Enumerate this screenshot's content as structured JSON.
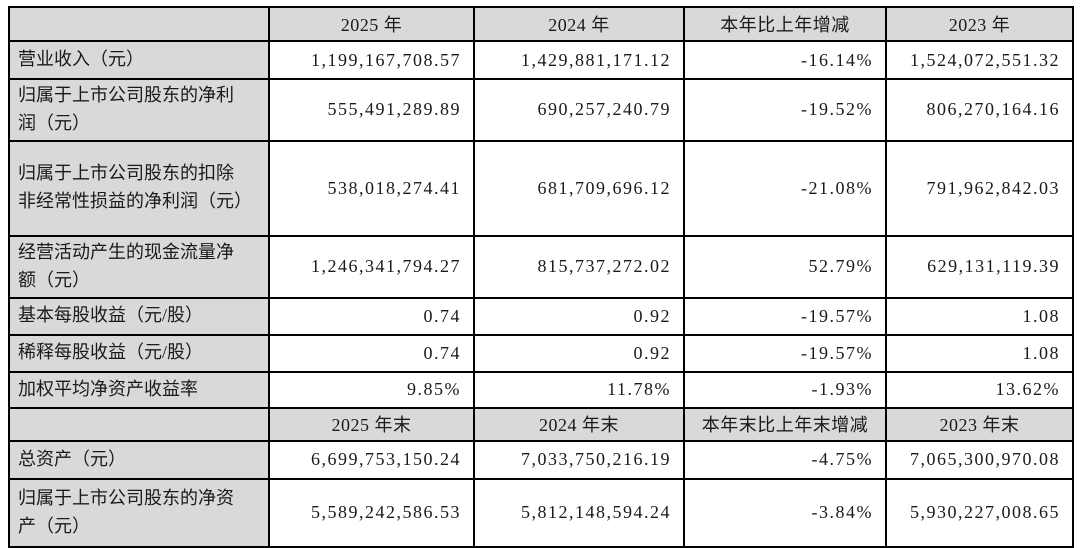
{
  "table": {
    "rows": [
      {
        "type": "header",
        "cells": [
          "",
          "2025 年",
          "2024 年",
          "本年比上年增减",
          "2023 年"
        ]
      },
      {
        "type": "data",
        "label": "营业收入（元）",
        "values": [
          "1,199,167,708.57",
          "1,429,881,171.12",
          "-16.14%",
          "1,524,072,551.32"
        ]
      },
      {
        "type": "data",
        "label": "归属于上市公司股东的净利润（元）",
        "values": [
          "555,491,289.89",
          "690,257,240.79",
          "-19.52%",
          "806,270,164.16"
        ]
      },
      {
        "type": "data",
        "label": "归属于上市公司股东的扣除非经常性损益的净利润（元）",
        "values": [
          "538,018,274.41",
          "681,709,696.12",
          "-21.08%",
          "791,962,842.03"
        ]
      },
      {
        "type": "data",
        "label": "经营活动产生的现金流量净额（元）",
        "values": [
          "1,246,341,794.27",
          "815,737,272.02",
          "52.79%",
          "629,131,119.39"
        ]
      },
      {
        "type": "data",
        "label": "基本每股收益（元/股）",
        "values": [
          "0.74",
          "0.92",
          "-19.57%",
          "1.08"
        ]
      },
      {
        "type": "data",
        "label": "稀释每股收益（元/股）",
        "values": [
          "0.74",
          "0.92",
          "-19.57%",
          "1.08"
        ]
      },
      {
        "type": "data",
        "label": "加权平均净资产收益率",
        "values": [
          "9.85%",
          "11.78%",
          "-1.93%",
          "13.62%"
        ]
      },
      {
        "type": "header",
        "cells": [
          "",
          "2025 年末",
          "2024 年末",
          "本年末比上年末增减",
          "2023 年末"
        ]
      },
      {
        "type": "data",
        "label": "总资产（元）",
        "values": [
          "6,699,753,150.24",
          "7,033,750,216.19",
          "-4.75%",
          "7,065,300,970.08"
        ]
      },
      {
        "type": "data",
        "label": "归属于上市公司股东的净资产（元）",
        "values": [
          "5,589,242,586.53",
          "5,812,148,594.24",
          "-3.84%",
          "5,930,227,008.65"
        ]
      }
    ]
  }
}
